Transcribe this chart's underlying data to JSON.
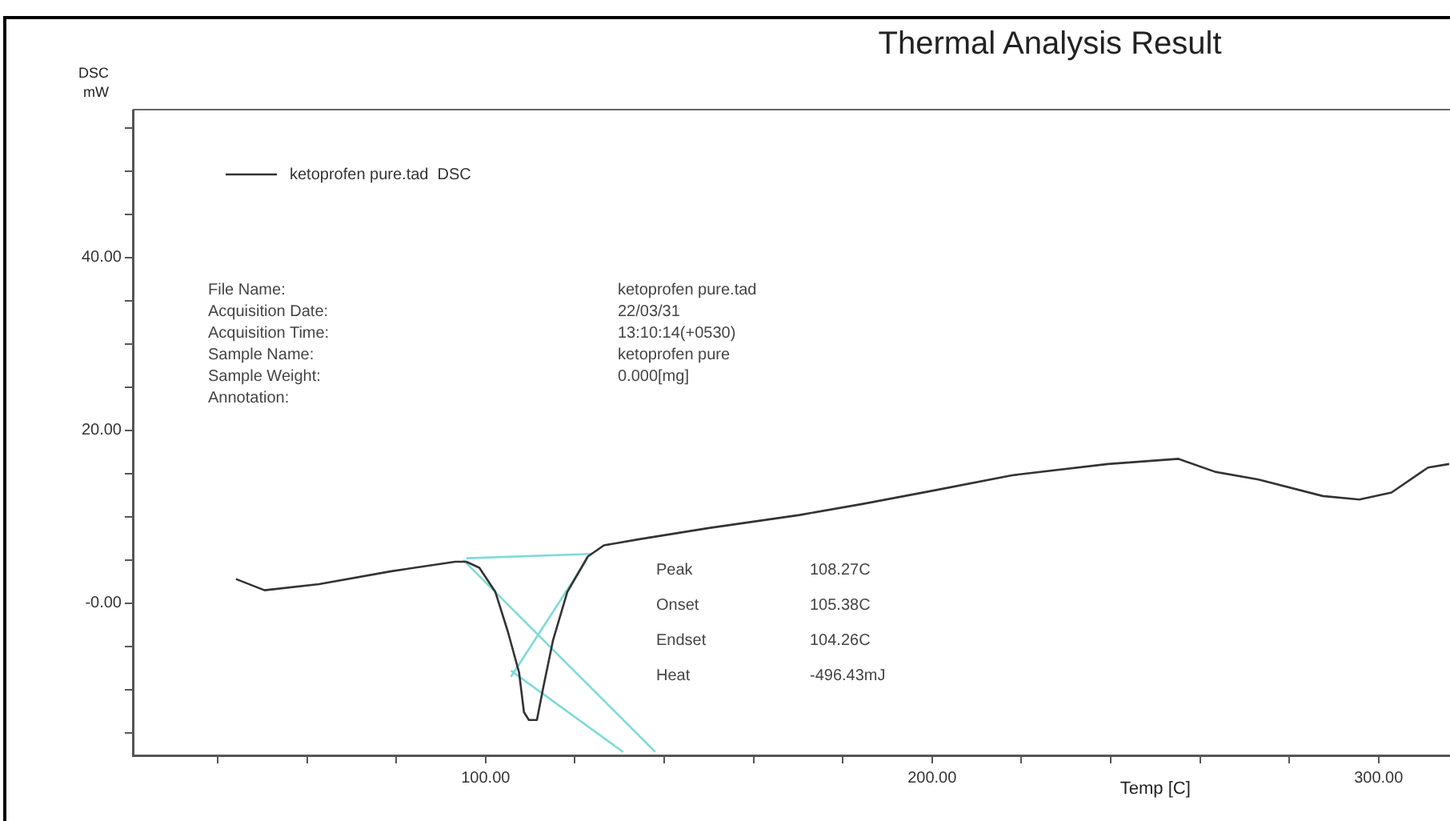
{
  "chart_data": {
    "type": "line",
    "title": "Thermal Analysis Result",
    "xlabel": "Temp [C]",
    "ylabel": "DSC\nmW",
    "xlim": [
      21,
      316
    ],
    "ylim": [
      -17.6,
      57
    ],
    "xticks": [
      {
        "value": 40,
        "label": null
      },
      {
        "value": 60,
        "label": null
      },
      {
        "value": 80,
        "label": null
      },
      {
        "value": 100,
        "label": "100.00"
      },
      {
        "value": 120,
        "label": null
      },
      {
        "value": 140,
        "label": null
      },
      {
        "value": 160,
        "label": null
      },
      {
        "value": 180,
        "label": null
      },
      {
        "value": 200,
        "label": "200.00"
      },
      {
        "value": 220,
        "label": null
      },
      {
        "value": 240,
        "label": null
      },
      {
        "value": 260,
        "label": null
      },
      {
        "value": 280,
        "label": null
      },
      {
        "value": 300,
        "label": "300.00"
      }
    ],
    "yticks": [
      {
        "value": -15,
        "label": null
      },
      {
        "value": -10,
        "label": null
      },
      {
        "value": -5,
        "label": null
      },
      {
        "value": 0,
        "label": "-0.00"
      },
      {
        "value": 5,
        "label": null
      },
      {
        "value": 10,
        "label": null
      },
      {
        "value": 15,
        "label": null
      },
      {
        "value": 20,
        "label": "20.00"
      },
      {
        "value": 25,
        "label": null
      },
      {
        "value": 30,
        "label": null
      },
      {
        "value": 35,
        "label": null
      },
      {
        "value": 40,
        "label": "40.00"
      },
      {
        "value": 45,
        "label": null
      },
      {
        "value": 50,
        "label": null
      },
      {
        "value": 55,
        "label": null
      }
    ],
    "grid": false,
    "legend": "top left",
    "marker": "none",
    "line_style": "solid",
    "series": [
      {
        "name": "ketoprofen pure.tad  DSC",
        "color": "#333333",
        "x": [
          44.1,
          50.5,
          62.7,
          78.9,
          93.2,
          95.7,
          98.6,
          102.2,
          105.0,
          107.5,
          108.6,
          109.7,
          111.5,
          112.9,
          115.1,
          118.3,
          122.9,
          126.5,
          134.4,
          150,
          170.3,
          184.6,
          200,
          217.9,
          239.4,
          255.2,
          263.4,
          273.1,
          287.5,
          295.7,
          302.9,
          311.1,
          315.8
        ],
        "values": [
          2.8,
          1.5,
          2.2,
          3.7,
          4.8,
          4.8,
          4.1,
          1.3,
          -3.3,
          -8.0,
          -12.6,
          -13.5,
          -13.5,
          -9.8,
          -4.3,
          1.3,
          5.4,
          6.7,
          7.4,
          8.7,
          10.2,
          11.5,
          13.0,
          14.8,
          16.1,
          16.7,
          15.2,
          14.3,
          12.4,
          12.0,
          12.8,
          15.7,
          16.1
        ]
      },
      {
        "color": "#7fdada",
        "x": [
          95.7,
          123.7
        ],
        "values": [
          5.2,
          5.7
        ]
      },
      {
        "color": "#7fdada",
        "x": [
          95.0,
          138.0
        ],
        "values": [
          5.0,
          -17.2
        ]
      },
      {
        "color": "#7fdada",
        "x": [
          105.7,
          130.8
        ],
        "values": [
          -7.8,
          -17.2
        ]
      },
      {
        "color": "#7fdada",
        "x": [
          105.7,
          122.6
        ],
        "values": [
          -8.5,
          5.0
        ]
      }
    ],
    "annotations": [
      "File Name:",
      "ketoprofen pure.tad",
      "Acquisition Date:",
      "22/03/31",
      "Acquisition Time:",
      "13:10:14(+0530)",
      "Sample Name:",
      "ketoprofen pure",
      "Sample Weight:",
      "0.000[mg]",
      "Annotation:",
      "Peak",
      "108.27C",
      "Onset",
      "105.38C",
      "Endset",
      "104.26C",
      "Heat",
      "-496.43mJ"
    ]
  }
}
